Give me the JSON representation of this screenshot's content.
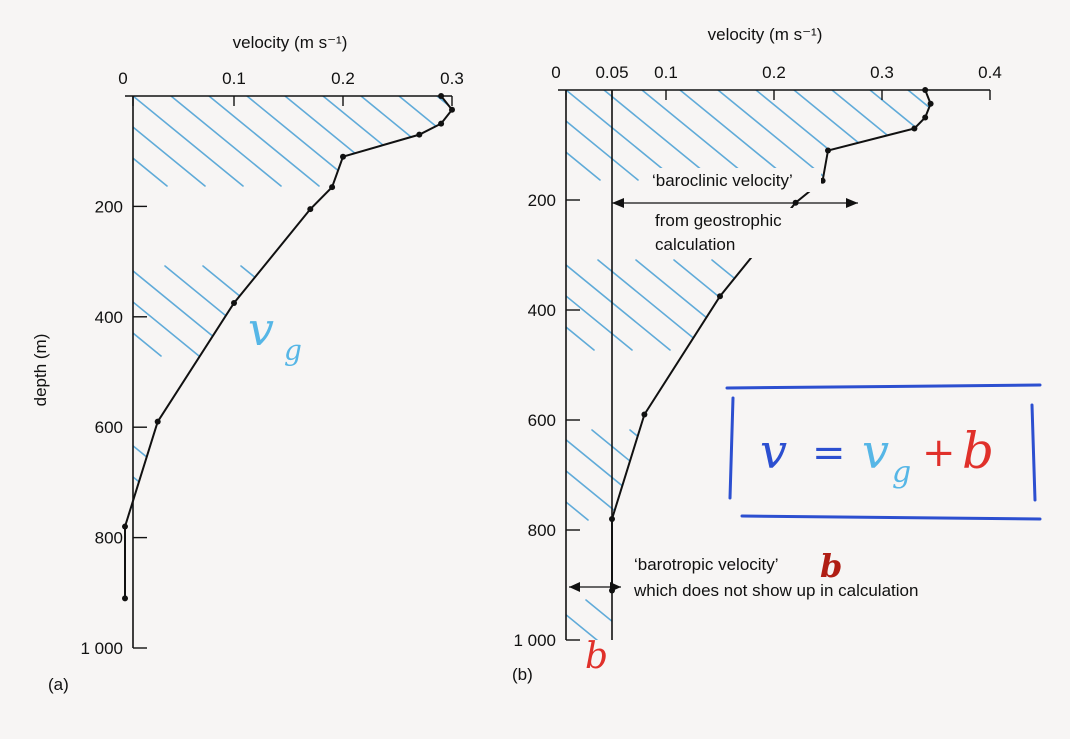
{
  "colors": {
    "line": "#111111",
    "hatch": "#4fa3d6",
    "hand_blue": "#2c4fd0",
    "hand_cyan": "#56b6e6",
    "hand_red": "#e0302a"
  },
  "chart_data": [
    {
      "type": "line",
      "panel_label": "(a)",
      "xlabel": "velocity (m s⁻¹)",
      "ylabel": "depth (m)",
      "xlim": [
        0,
        0.3
      ],
      "ylim": [
        0,
        1000
      ],
      "x_ticks": [
        0,
        0.1,
        0.2,
        0.3
      ],
      "x_tick_labels": [
        "0",
        "0.1",
        "0.2",
        "0.3"
      ],
      "y_ticks": [
        200,
        400,
        600,
        800,
        1000
      ],
      "y_tick_labels": [
        "200",
        "400",
        "600",
        "800",
        "1 000"
      ],
      "hatched_area": "v_g",
      "series": [
        {
          "x": [
            0.29,
            0.3,
            0.29,
            0.27,
            0.2,
            0.19,
            0.17,
            0.1,
            0.03,
            0.0,
            0.0
          ],
          "y": [
            0,
            25,
            50,
            70,
            110,
            165,
            205,
            375,
            590,
            780,
            910
          ]
        }
      ],
      "handwritten_label": "v",
      "handwritten_subscript": "g"
    },
    {
      "type": "line",
      "panel_label": "(b)",
      "xlabel": "velocity (m s⁻¹)",
      "xlim": [
        0,
        0.4
      ],
      "ylim": [
        0,
        1000
      ],
      "x_ticks": [
        0,
        0.05,
        0.1,
        0.2,
        0.3,
        0.4
      ],
      "x_tick_labels": [
        "0",
        "0.05",
        "0.1",
        "0.2",
        "0.3",
        "0.4"
      ],
      "y_ticks": [
        200,
        400,
        600,
        800,
        1000
      ],
      "y_tick_labels": [
        "200",
        "400",
        "600",
        "800",
        "1 000"
      ],
      "barotropic_offset": 0.05,
      "series": [
        {
          "x": [
            0.34,
            0.345,
            0.34,
            0.33,
            0.25,
            0.245,
            0.22,
            0.15,
            0.08,
            0.05,
            0.05
          ],
          "y": [
            0,
            25,
            50,
            70,
            110,
            165,
            205,
            375,
            590,
            780,
            910
          ]
        }
      ],
      "annotations": {
        "baroclinic_1": "‘baroclinic velocity’",
        "baroclinic_2": "from geostrophic",
        "baroclinic_3": "calculation",
        "barotropic_1": "‘barotropic velocity’",
        "barotropic_2": "which does not show up in calculation"
      },
      "handwritten_b_label": "b",
      "handwritten_b_bottom": "b"
    }
  ],
  "equation": {
    "lhs": "v",
    "equals": "=",
    "term1": "v",
    "term1_sub": "g",
    "plus": "+",
    "term2": "b"
  }
}
